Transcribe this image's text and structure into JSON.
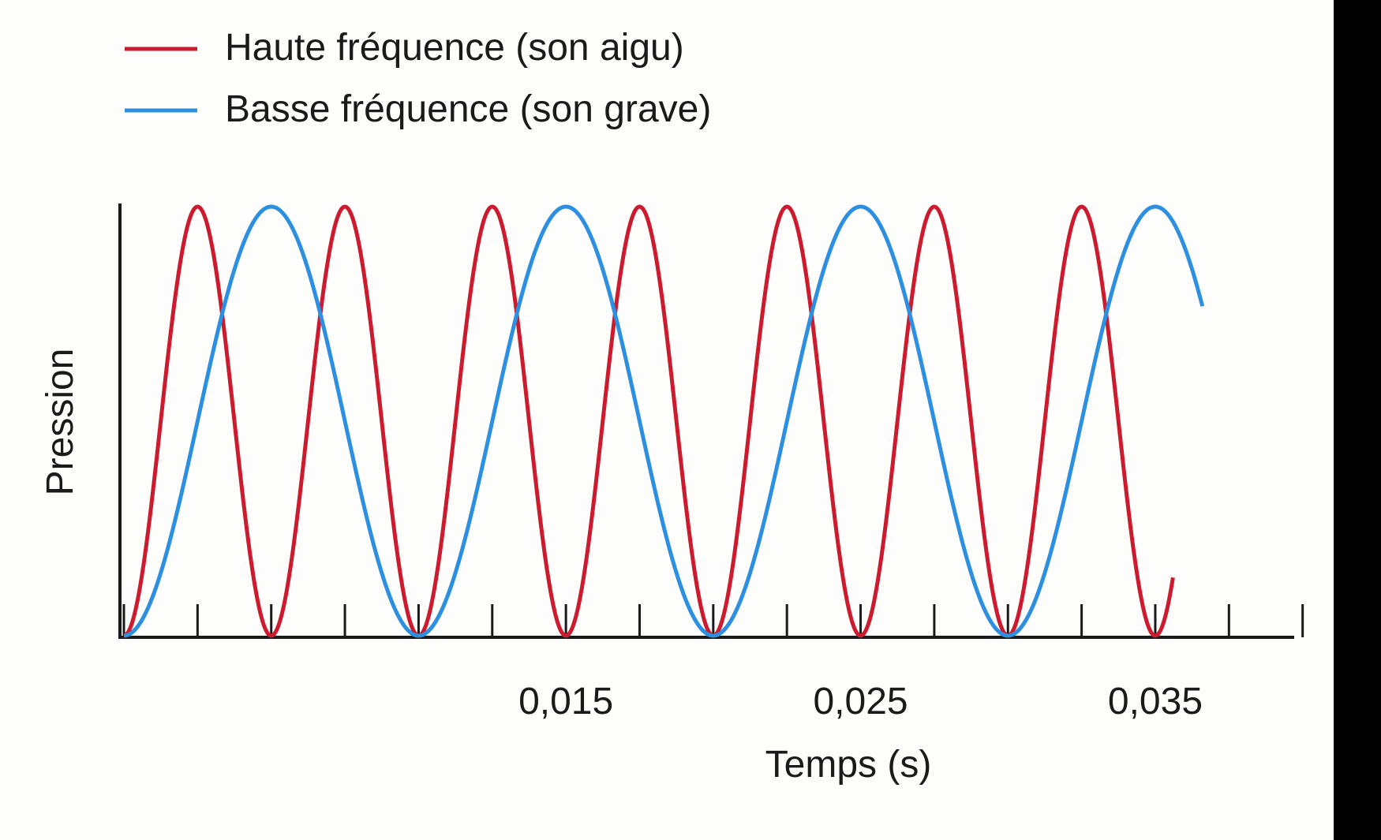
{
  "chart_data": {
    "type": "line",
    "title": "",
    "xlabel": "Temps (s)",
    "ylabel": "Pression",
    "xlim": [
      0.0,
      0.0395
    ],
    "ylim": [
      0,
      1
    ],
    "x_ticks": [
      0,
      0.0025,
      0.005,
      0.0075,
      0.01,
      0.0125,
      0.015,
      0.0175,
      0.02,
      0.0225,
      0.025,
      0.0275,
      0.03,
      0.0325,
      0.035,
      0.0375,
      0.04
    ],
    "x_tick_labels": [
      {
        "x": 0.015,
        "label": "0,015"
      },
      {
        "x": 0.025,
        "label": "0,025"
      },
      {
        "x": 0.035,
        "label": "0,035"
      }
    ],
    "grid": false,
    "legend_position": "top-left",
    "series": [
      {
        "name": "Haute fréquence (son aigu)",
        "color": "#cc1a2e",
        "frequency_hz": 200,
        "x_end": 0.0356,
        "amplitude_peak": 1.0
      },
      {
        "name": "Basse fréquence (son grave)",
        "color": "#2d8fe0",
        "frequency_hz": 100,
        "x_end": 0.0366,
        "amplitude_peak": 1.0
      }
    ]
  }
}
